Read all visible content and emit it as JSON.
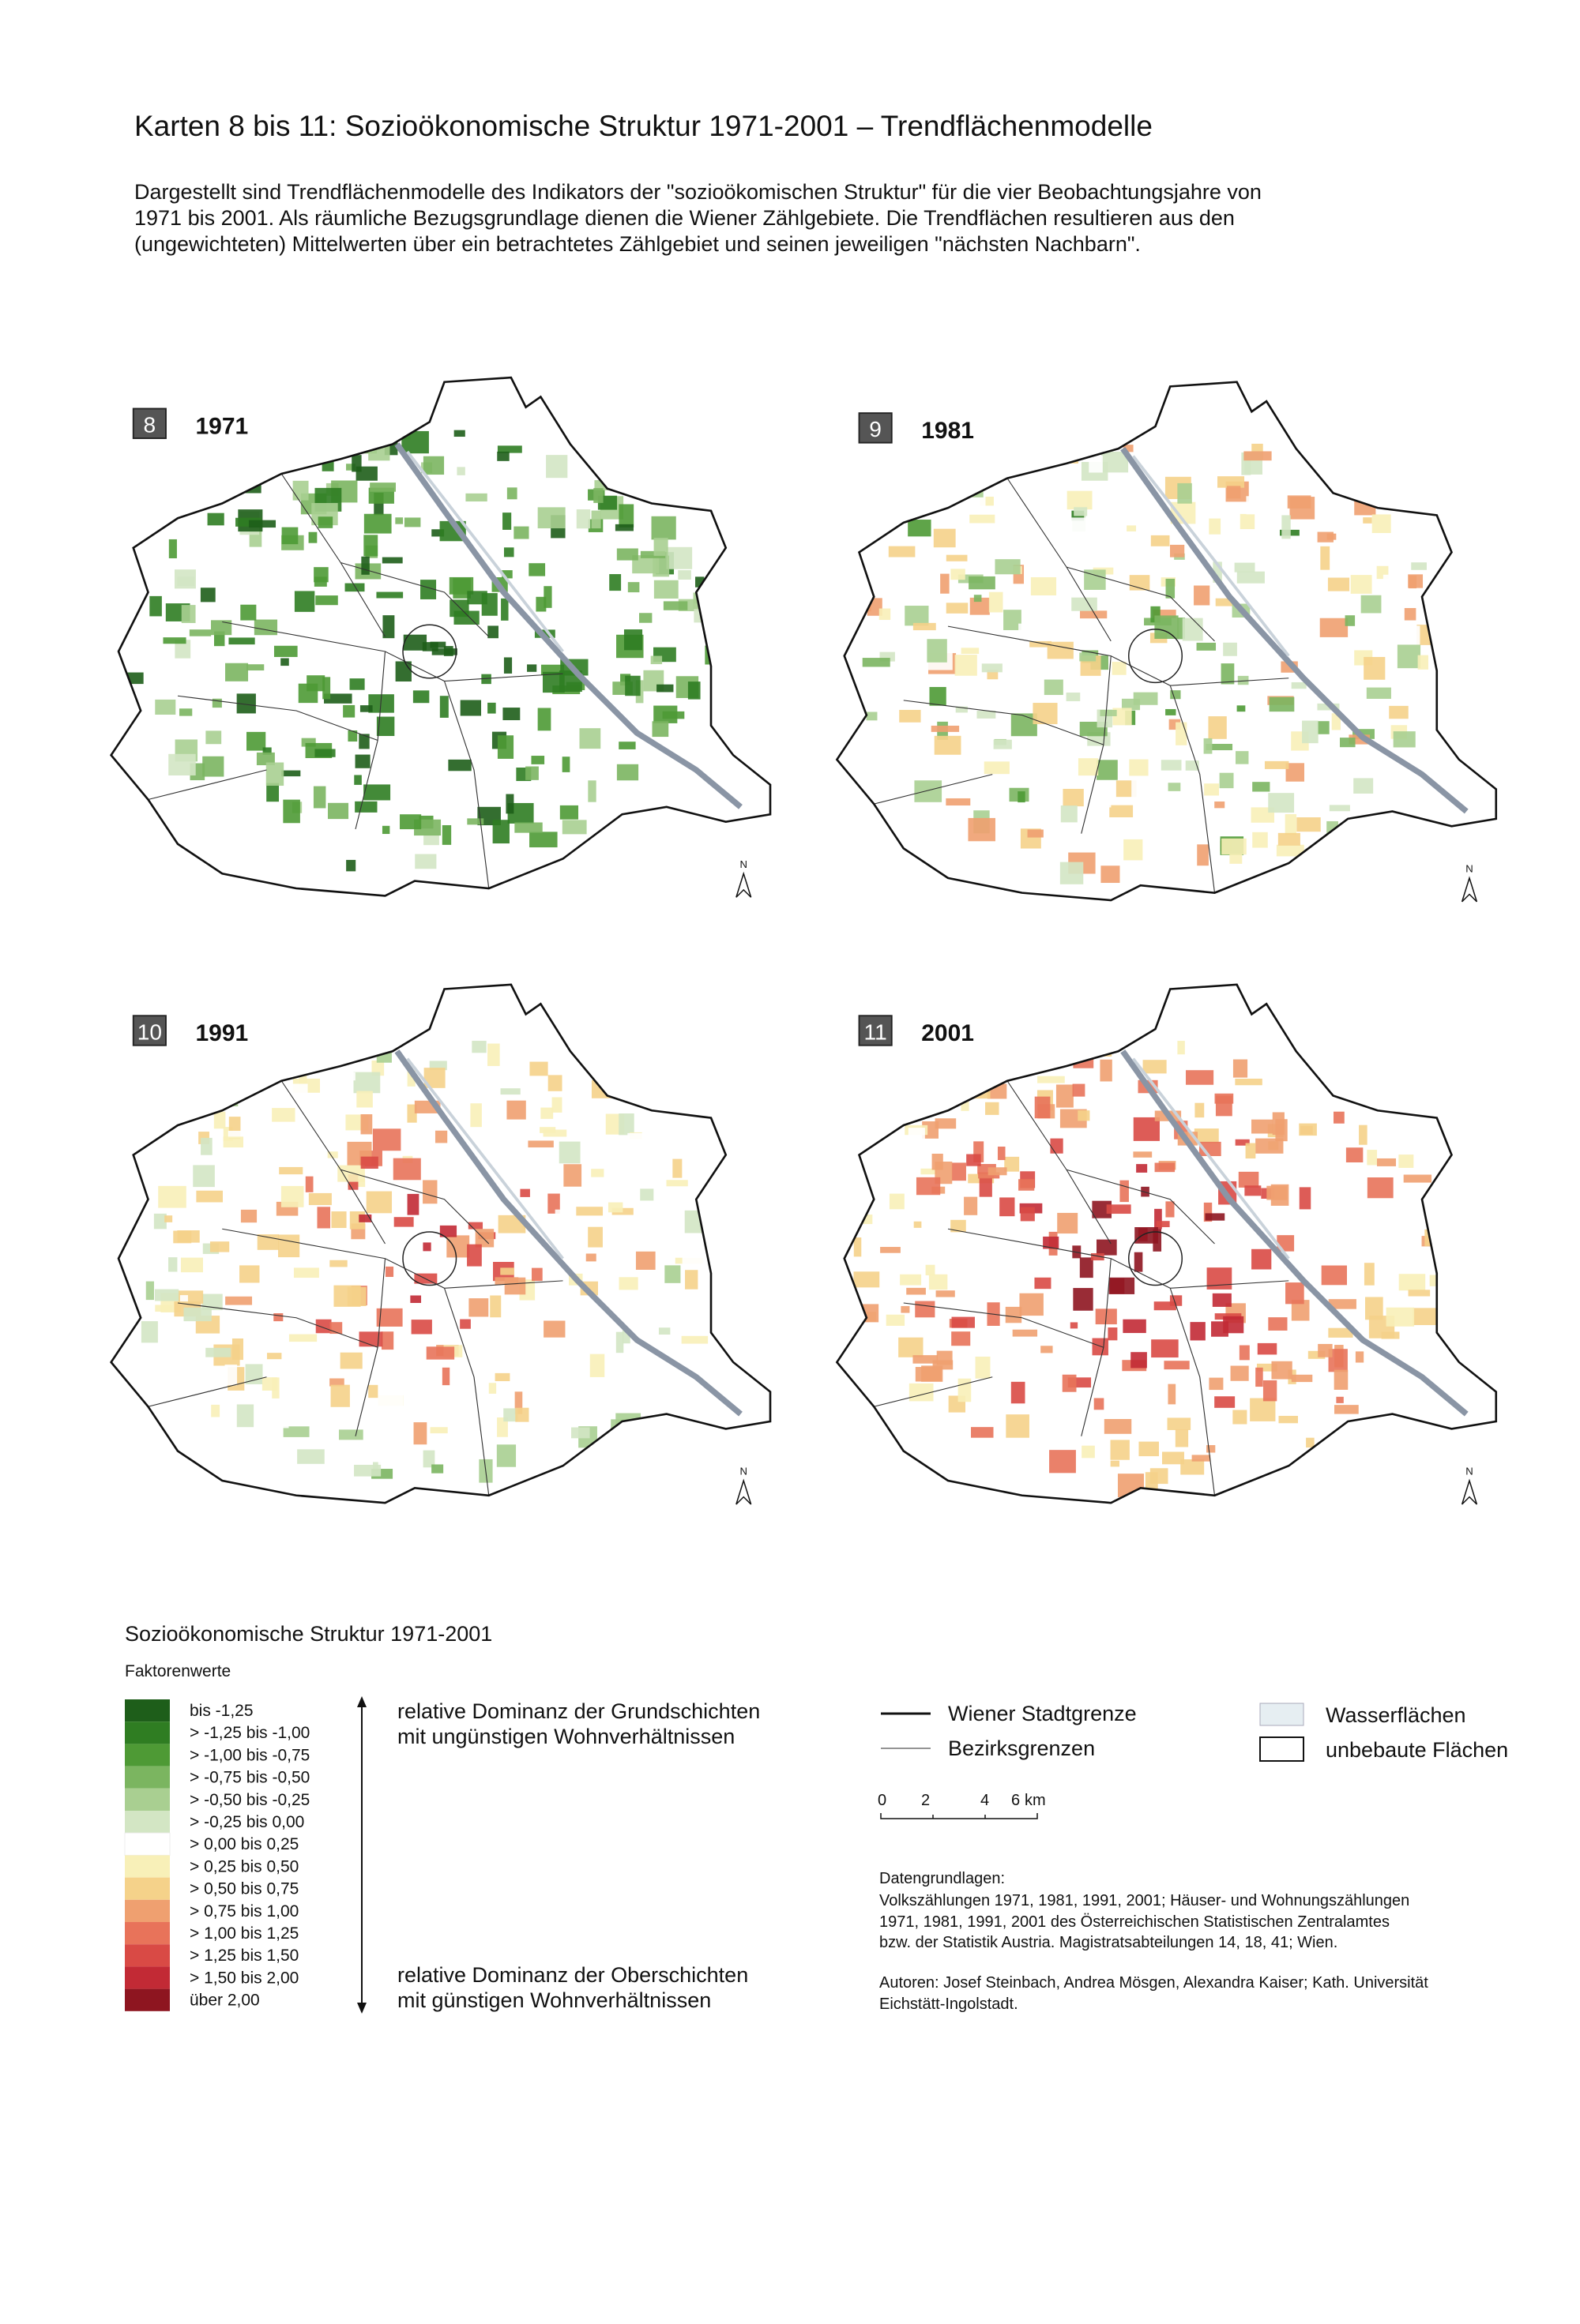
{
  "header": {
    "title": "Karten 8 bis 11:  Sozioökonomische Struktur 1971-2001 – Trendflächenmodelle",
    "intro": [
      "Dargestellt sind Trendflächenmodelle des Indikators der \"sozioökomischen Struktur\" für die vier Beobachtungsjahre von",
      "1971 bis 2001. Als räumliche Bezugsgrundlage dienen die Wiener Zählgebiete. Die Trendflächen resultieren aus den",
      "(ungewichteten) Mittelwerten über ein betrachtetes Zählgebiet und seinen jeweiligen \"nächsten Nachbarn\"."
    ]
  },
  "maps": [
    {
      "number": "8",
      "year": "1971",
      "north": "N"
    },
    {
      "number": "9",
      "year": "1981",
      "north": "N"
    },
    {
      "number": "10",
      "year": "1991",
      "north": "N"
    },
    {
      "number": "11",
      "year": "2001",
      "north": "N"
    }
  ],
  "legend": {
    "title": "Sozioökonomische Struktur 1971-2001",
    "subtitle": "Faktorenwerte",
    "items": [
      {
        "label": "bis -1,25",
        "color": "#1e5e1a"
      },
      {
        "label": "> -1,25 bis -1,00",
        "color": "#2f7d22"
      },
      {
        "label": "> -1,00 bis -0,75",
        "color": "#4e9a35"
      },
      {
        "label": "> -0,75 bis -0,50",
        "color": "#7bb560"
      },
      {
        "label": "> -0,50 bis -0,25",
        "color": "#a9cf91"
      },
      {
        "label": "> -0,25 bis  0,00",
        "color": "#d3e6c4"
      },
      {
        "label": ">  0,00 bis  0,25",
        "color": "#ffffff"
      },
      {
        "label": ">  0,25 bis  0,50",
        "color": "#f8f0b8"
      },
      {
        "label": ">  0,50 bis  0,75",
        "color": "#f5d28a"
      },
      {
        "label": ">  0,75 bis  1,00",
        "color": "#efa070"
      },
      {
        "label": ">  1,00 bis  1,25",
        "color": "#e8735a"
      },
      {
        "label": ">  1,25 bis  1,50",
        "color": "#d94a45"
      },
      {
        "label": ">  1,50 bis  2,00",
        "color": "#c22a35"
      },
      {
        "label": "über 2,00",
        "color": "#8e1520"
      }
    ],
    "top_note": [
      "relative Dominanz der Grundschichten",
      "mit ungünstigen Wohnverhältnissen"
    ],
    "bottom_note": [
      "relative Dominanz der Oberschichten",
      "mit günstigen Wohnverhältnissen"
    ],
    "lines": [
      "Wiener Stadtgrenze",
      "Bezirksgrenzen"
    ],
    "areas": [
      "Wasserflächen",
      "unbebaute Flächen"
    ],
    "scale": [
      "0",
      "2",
      "4",
      "6",
      "km"
    ]
  },
  "sources": {
    "heading": "Datengrundlagen:",
    "lines": [
      "Volkszählungen 1971, 1981, 1991, 2001; Häuser- und Wohnungszählungen",
      "1971, 1981, 1991, 2001 des Österreichischen Statistischen Zentralamtes",
      "bzw. der Statistik Austria. Magistratsabteilungen 14, 18, 41; Wien."
    ],
    "authors": [
      "Autoren: Josef Steinbach, Andrea Mösgen, Alexandra Kaiser; Kath. Universität",
      "Eichstätt-Ingolstadt."
    ]
  }
}
